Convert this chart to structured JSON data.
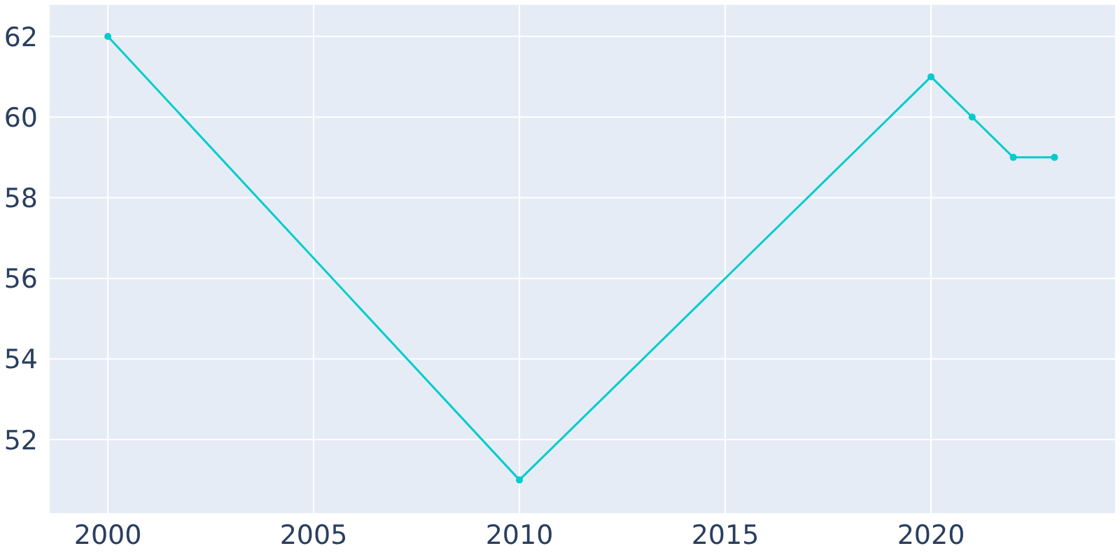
{
  "chart_data": {
    "type": "line",
    "x": [
      2000,
      2010,
      2020,
      2021,
      2022,
      2023
    ],
    "series": [
      {
        "color": "#00cccc",
        "values": [
          62,
          51,
          61,
          60,
          59,
          59
        ]
      }
    ],
    "xlim": [
      1998.57,
      2024.49
    ],
    "xticks": [
      2000,
      2005,
      2010,
      2015,
      2020
    ],
    "ylim": [
      50.16,
      62.8
    ],
    "yticks": [
      52,
      54,
      56,
      58,
      60,
      62
    ],
    "grid": true,
    "marker": "circle",
    "line_style": "solid",
    "legend": false
  }
}
